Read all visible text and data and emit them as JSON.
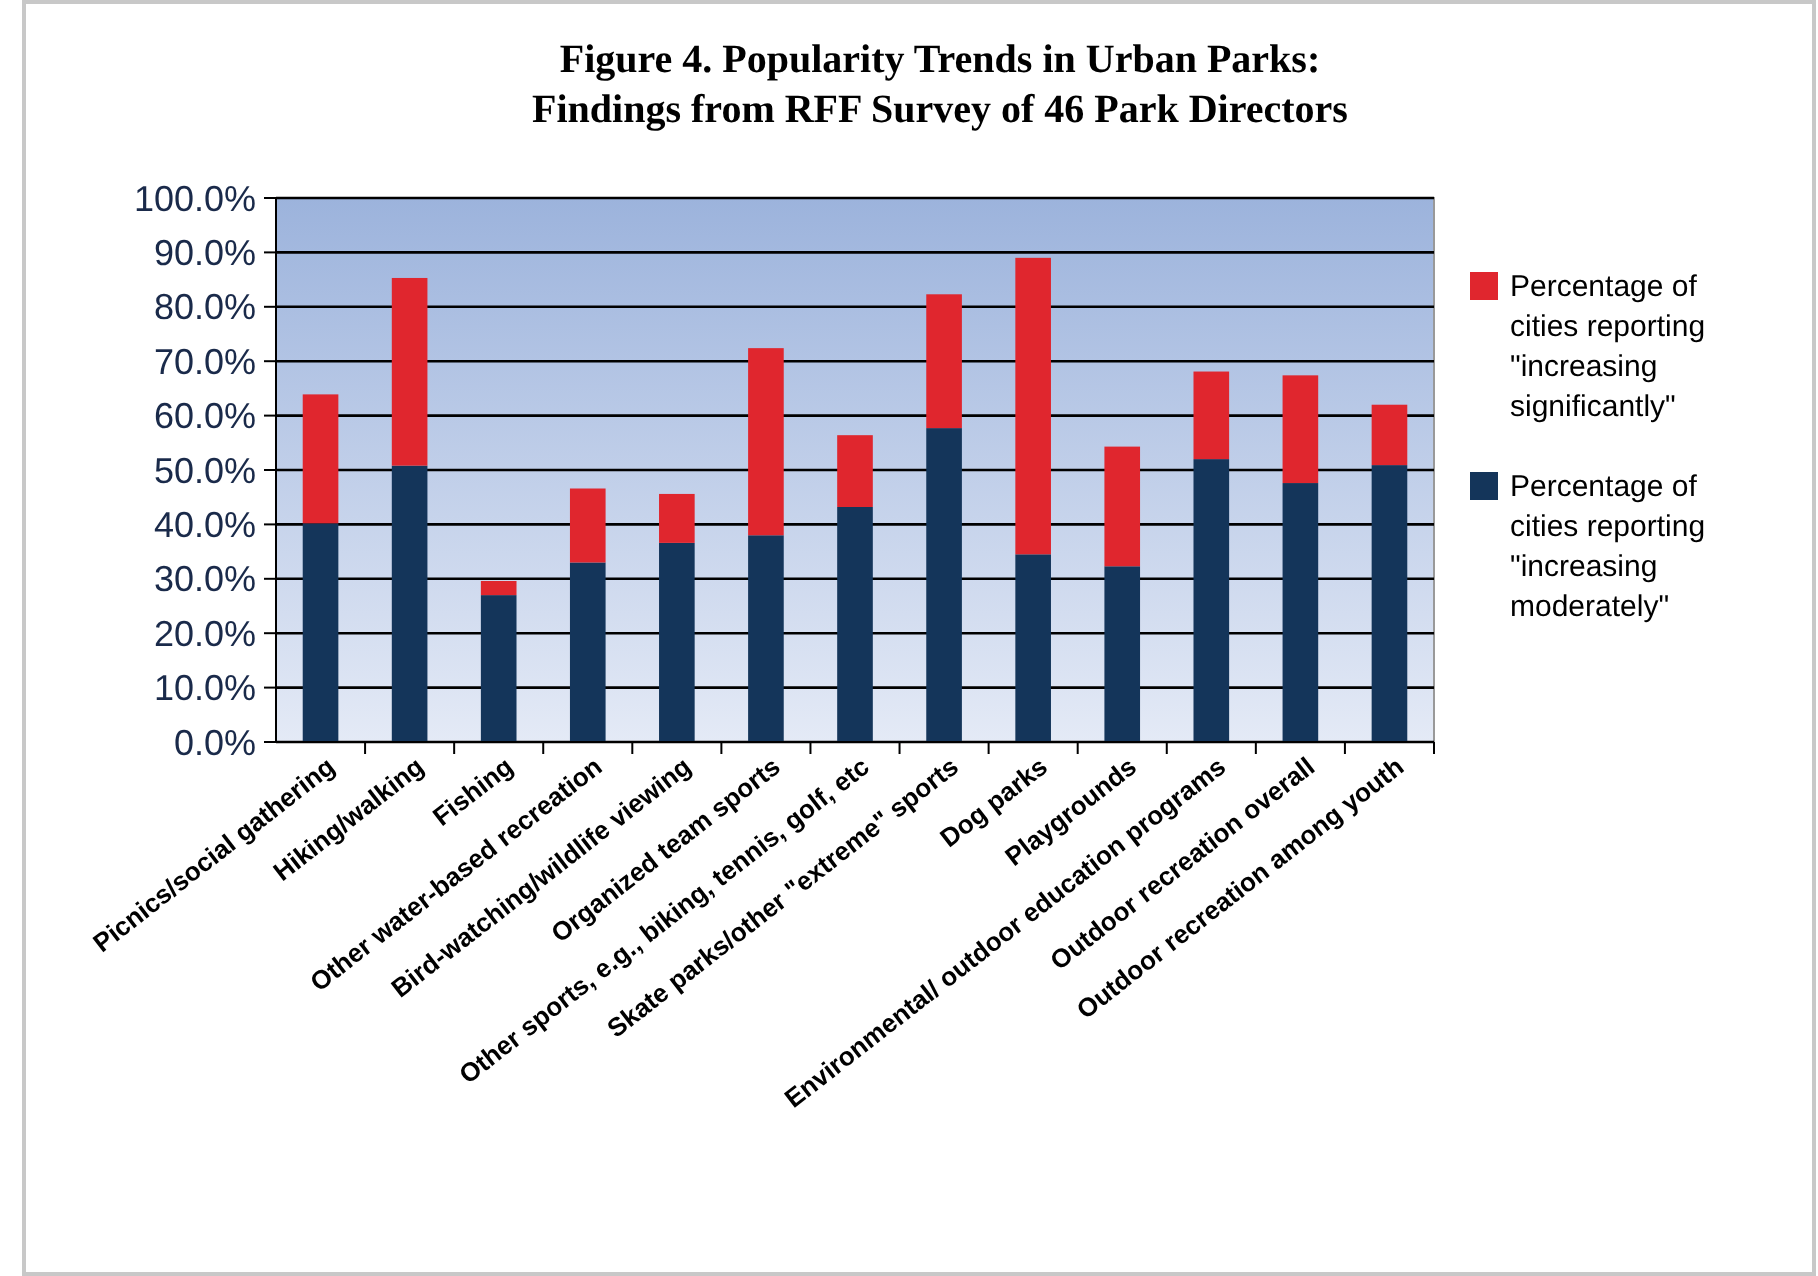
{
  "chart_data": {
    "type": "bar",
    "stacked": true,
    "title": "Figure 4. Popularity Trends in Urban Parks:\nFindings from RFF Survey of 46 Park Directors",
    "categories": [
      "Picnics/social gathering",
      "Hiking/walking",
      "Fishing",
      "Other water-based recreation",
      "Bird-watching/wildlife viewing",
      "Organized team sports",
      "Other sports, e.g., biking, tennis, golf, etc",
      "Skate parks/other \"extreme\" sports",
      "Dog parks",
      "Playgrounds",
      "Environmental/ outdoor education programs",
      "Outdoor recreation overall",
      "Outdoor recreation among youth"
    ],
    "series": [
      {
        "name": "Percentage of cities reporting \"increasing moderately\"",
        "color": "#14355a",
        "values": [
          40.2,
          50.8,
          27.0,
          33.0,
          36.6,
          38.0,
          43.2,
          57.7,
          34.5,
          32.3,
          52.0,
          47.6,
          50.9
        ]
      },
      {
        "name": "Percentage of cities reporting \"increasing significantly\"",
        "color": "#e0262e",
        "values": [
          23.7,
          34.5,
          2.6,
          13.6,
          9.0,
          34.4,
          13.2,
          24.6,
          54.5,
          22.0,
          16.1,
          19.8,
          11.1
        ]
      }
    ],
    "ylim": [
      0,
      100
    ],
    "yticks": [
      {
        "value": 0,
        "label": "0.0%"
      },
      {
        "value": 10,
        "label": "10.0%"
      },
      {
        "value": 20,
        "label": "20.0%"
      },
      {
        "value": 30,
        "label": "30.0%"
      },
      {
        "value": 40,
        "label": "40.0%"
      },
      {
        "value": 50,
        "label": "50.0%"
      },
      {
        "value": 60,
        "label": "60.0%"
      },
      {
        "value": 70,
        "label": "70.0%"
      },
      {
        "value": 80,
        "label": "80.0%"
      },
      {
        "value": 90,
        "label": "90.0%"
      },
      {
        "value": 100,
        "label": "100.0%"
      }
    ],
    "grid": "y",
    "legend": "right"
  }
}
